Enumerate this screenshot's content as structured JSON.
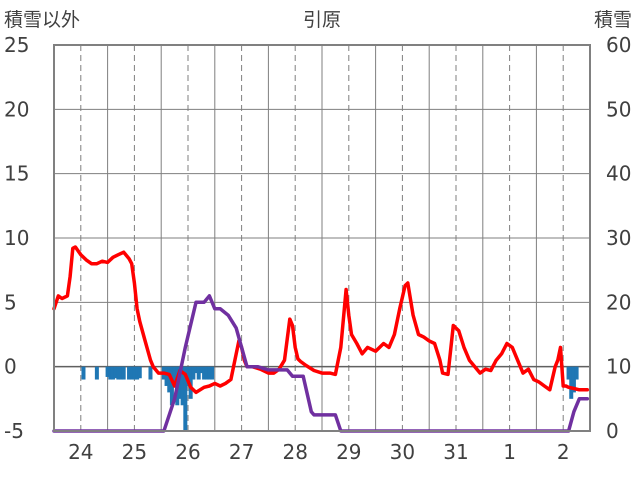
{
  "title": "引原",
  "left_axis_title": "積雪以外",
  "right_axis_title": "積雪",
  "chart_data": {
    "type": "line",
    "title": "引原",
    "left_axis": {
      "label": "積雪以外",
      "ylim": [
        -5,
        25
      ],
      "ticks": [
        "25",
        "20",
        "15",
        "10",
        "5",
        "0",
        "-5"
      ]
    },
    "right_axis": {
      "label": "積雪",
      "ylim": [
        0,
        60
      ],
      "ticks": [
        "60",
        "50",
        "40",
        "30",
        "20",
        "10",
        "0"
      ]
    },
    "x_axis": {
      "range_days": [
        23.5,
        33.5
      ],
      "tick_labels": [
        "24",
        "25",
        "26",
        "27",
        "28",
        "29",
        "30",
        "31",
        "1",
        "2"
      ],
      "tick_days": [
        24,
        25,
        26,
        27,
        28,
        29,
        30,
        31,
        32,
        33
      ]
    },
    "grid": true,
    "colors": {
      "temperature": "#ff0000",
      "snow_depth": "#7030a0",
      "precipitation": "#1f77b4",
      "axis_text": "#404040",
      "grid": "#7f7f7f"
    },
    "series": [
      {
        "axis": "left",
        "style": "line",
        "color": "#ff0000",
        "x": [
          23.5,
          23.58,
          23.65,
          23.75,
          23.8,
          23.85,
          23.9,
          23.95,
          24.0,
          24.1,
          24.2,
          24.3,
          24.4,
          24.5,
          24.6,
          24.7,
          24.8,
          24.9,
          24.95,
          25.0,
          25.05,
          25.1,
          25.2,
          25.3,
          25.35,
          25.45,
          25.55,
          25.65,
          25.75,
          25.85,
          25.95,
          26.05,
          26.15,
          26.3,
          26.4,
          26.5,
          26.6,
          26.7,
          26.8,
          26.9,
          26.95,
          27.0,
          27.05,
          27.1,
          27.2,
          27.35,
          27.5,
          27.6,
          27.7,
          27.8,
          27.9,
          27.95,
          28.0,
          28.05,
          28.1,
          28.2,
          28.35,
          28.5,
          28.65,
          28.75,
          28.85,
          28.95,
          29.0,
          29.05,
          29.15,
          29.25,
          29.35,
          29.5,
          29.65,
          29.75,
          29.85,
          29.95,
          30.05,
          30.1,
          30.2,
          30.3,
          30.4,
          30.5,
          30.6,
          30.7,
          30.75,
          30.85,
          30.95,
          31.0,
          31.05,
          31.15,
          31.25,
          31.35,
          31.45,
          31.55,
          31.65,
          31.75,
          31.85,
          31.95,
          32.05,
          32.15,
          32.25,
          32.35,
          32.45,
          32.55,
          32.65,
          32.75,
          32.85,
          32.9,
          32.95,
          33.0,
          33.05,
          33.1,
          33.2,
          33.3,
          33.45
        ],
        "values": [
          4.5,
          5.5,
          5.3,
          5.5,
          7.0,
          9.2,
          9.3,
          9.0,
          8.7,
          8.3,
          8.0,
          8.0,
          8.2,
          8.1,
          8.5,
          8.7,
          8.9,
          8.4,
          8.0,
          6.5,
          4.5,
          3.5,
          2.0,
          0.5,
          0.0,
          -0.5,
          -0.5,
          -0.6,
          -1.5,
          -0.3,
          -0.6,
          -1.6,
          -2.0,
          -1.6,
          -1.5,
          -1.3,
          -1.5,
          -1.3,
          -1.0,
          1.0,
          2.0,
          1.5,
          0.5,
          0.0,
          0.0,
          -0.2,
          -0.5,
          -0.5,
          -0.2,
          0.5,
          3.7,
          3.2,
          1.5,
          0.6,
          0.4,
          0.1,
          -0.3,
          -0.5,
          -0.5,
          -0.6,
          1.5,
          6.0,
          4.0,
          2.5,
          1.8,
          1.0,
          1.5,
          1.2,
          1.8,
          1.5,
          2.5,
          4.5,
          6.3,
          6.5,
          4.0,
          2.5,
          2.3,
          2.0,
          1.8,
          0.5,
          -0.5,
          -0.6,
          3.2,
          3.0,
          2.8,
          1.5,
          0.5,
          0.0,
          -0.5,
          -0.2,
          -0.3,
          0.5,
          1.0,
          1.8,
          1.5,
          0.5,
          -0.5,
          -0.2,
          -1.0,
          -1.2,
          -1.5,
          -1.8,
          0.0,
          0.5,
          1.5,
          -1.5,
          -1.5,
          -1.6,
          -1.7,
          -1.8,
          -1.8
        ]
      },
      {
        "axis": "right",
        "style": "line",
        "color": "#7030a0",
        "x": [
          23.5,
          25.55,
          25.75,
          25.95,
          26.15,
          26.3,
          26.4,
          26.45,
          26.5,
          26.6,
          26.75,
          26.9,
          27.0,
          27.1,
          27.3,
          27.5,
          27.6,
          27.7,
          27.85,
          27.95,
          28.05,
          28.15,
          28.3,
          28.35,
          28.45,
          28.5,
          28.6,
          28.75,
          28.85,
          29.0,
          33.1,
          33.2,
          33.3,
          33.45
        ],
        "values": [
          0,
          0,
          5,
          13,
          20,
          20,
          21,
          20,
          19,
          19,
          18,
          16,
          13,
          10,
          10,
          9.5,
          9.5,
          9.5,
          9.5,
          8.5,
          8.5,
          8.5,
          3,
          2.5,
          2.5,
          2.5,
          2.5,
          2.5,
          0,
          0,
          0,
          3,
          5,
          5
        ]
      },
      {
        "axis": "left",
        "style": "bars",
        "color": "#1f77b4",
        "x": [
          24.05,
          24.3,
          24.5,
          24.55,
          24.6,
          24.65,
          24.7,
          24.75,
          24.8,
          24.9,
          24.95,
          25.0,
          25.05,
          25.1,
          25.3,
          25.55,
          25.6,
          25.65,
          25.7,
          25.75,
          25.8,
          25.85,
          25.9,
          25.95,
          26.0,
          26.05,
          26.1,
          26.15,
          26.2,
          26.25,
          26.3,
          26.35,
          26.4,
          26.45,
          33.1,
          33.15,
          33.2,
          33.25
        ],
        "values": [
          -1.0,
          -1.0,
          -0.8,
          -1.0,
          -1.0,
          -0.9,
          -1.0,
          -1.0,
          -1.0,
          -1.0,
          -1.0,
          -1.0,
          -1.0,
          -0.9,
          -1.0,
          -1.0,
          -1.5,
          -2.0,
          -3.0,
          -1.5,
          -3.0,
          -2.5,
          -3.0,
          -5.0,
          -1.5,
          -2.5,
          -1.0,
          -0.5,
          -1.0,
          -0.5,
          -1.0,
          -1.0,
          -1.0,
          -1.0,
          -1.0,
          -2.5,
          -2.0,
          -1.0
        ]
      }
    ]
  }
}
